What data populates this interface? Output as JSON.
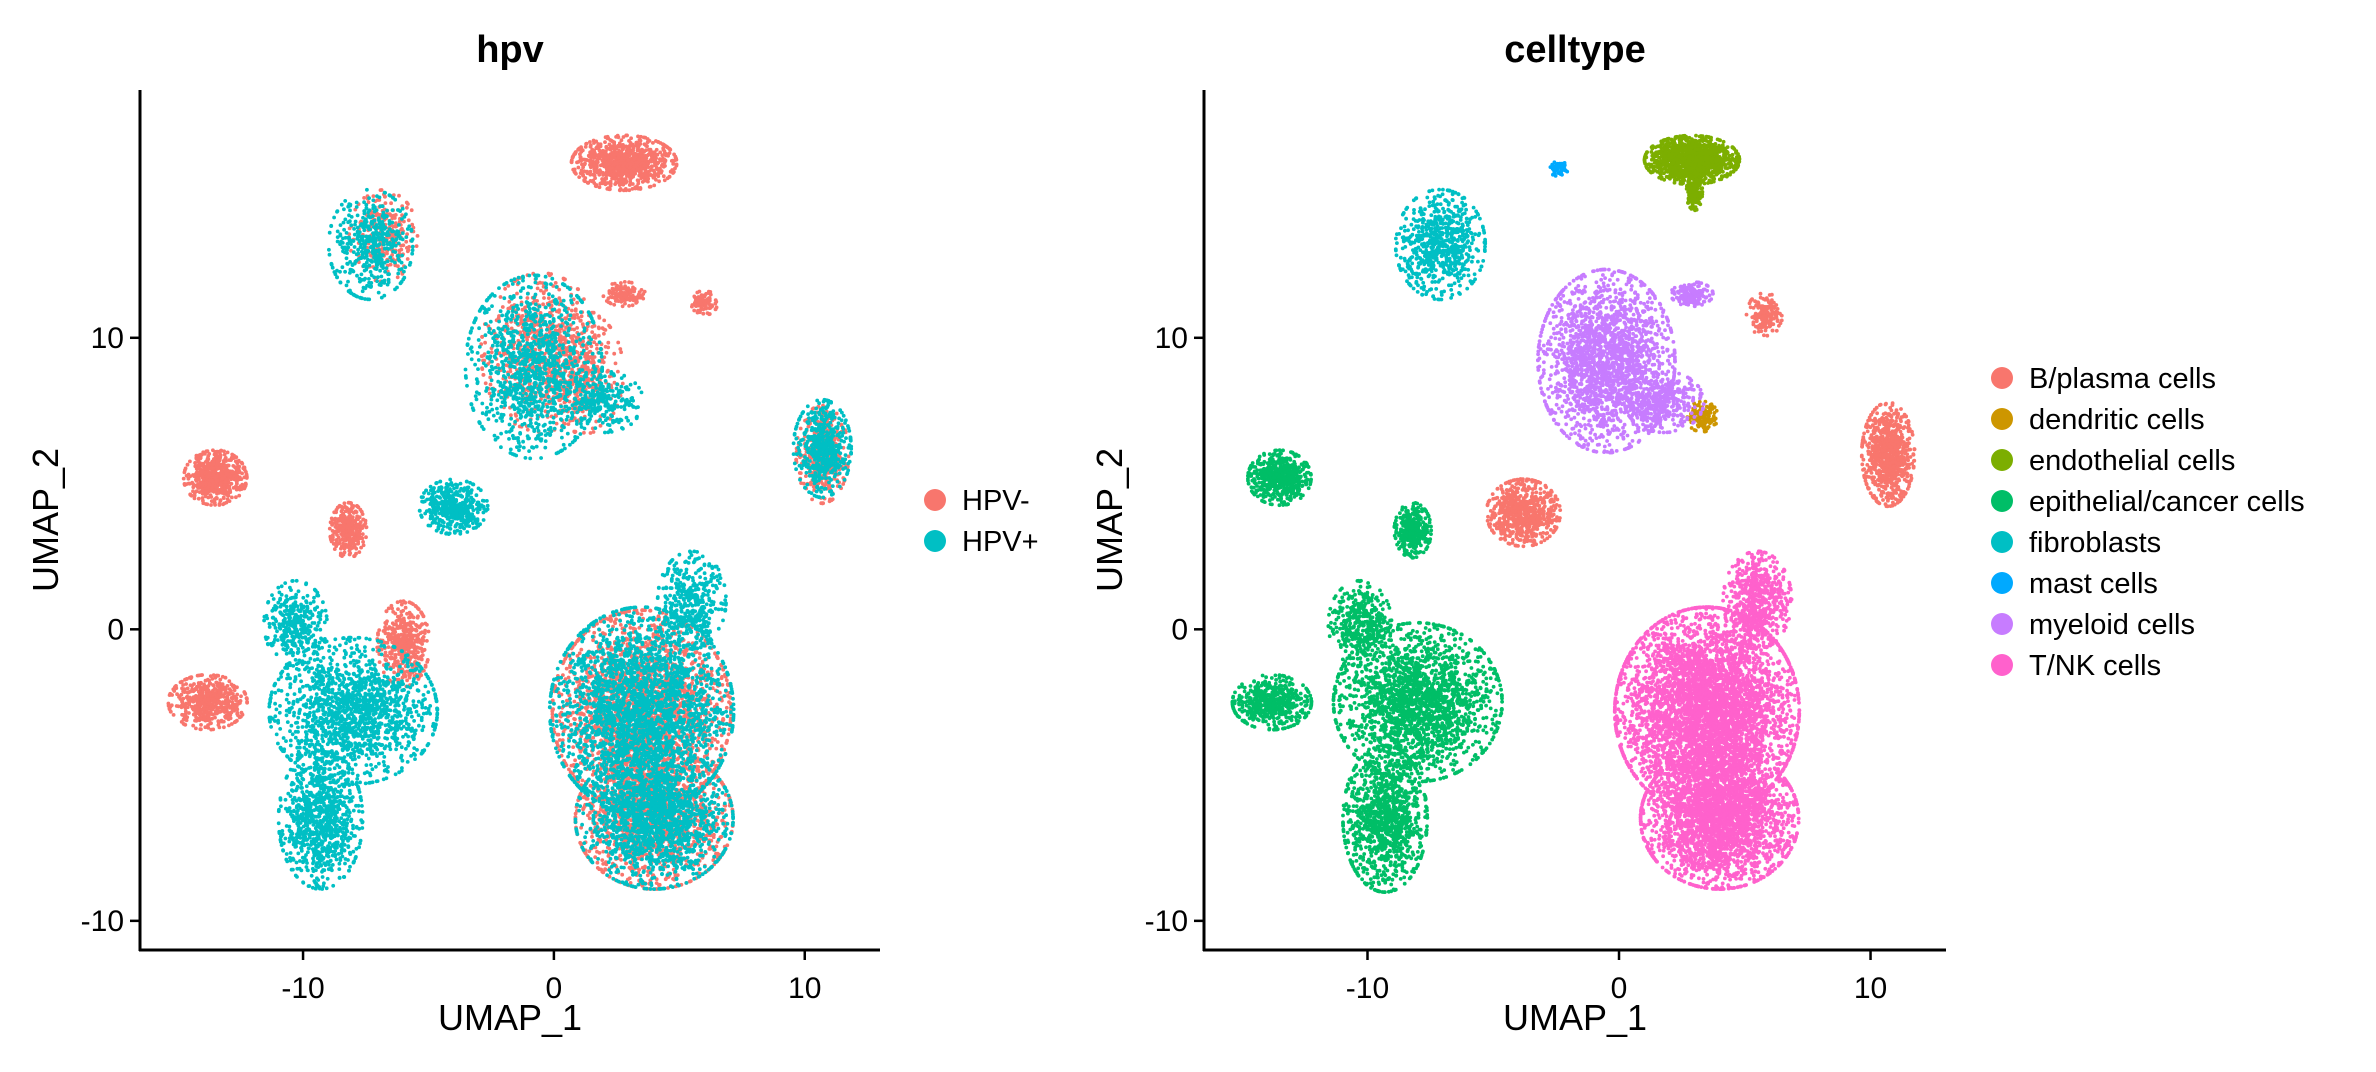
{
  "chart_data": [
    {
      "type": "scatter",
      "title": "hpv",
      "xlabel": "UMAP_1",
      "ylabel": "UMAP_2",
      "xlim": [
        -16.5,
        13
      ],
      "ylim": [
        -11,
        18.5
      ],
      "xticks": [
        -10,
        0,
        10
      ],
      "yticks": [
        -10,
        0,
        10
      ],
      "xtick_labels": [
        "-10",
        "0",
        "10"
      ],
      "ytick_labels": [
        "-10",
        "0",
        "10"
      ],
      "grid": false,
      "legend": "right",
      "series": [
        {
          "name": "HPV-",
          "color": "#F8766D",
          "regions": [
            {
              "x": 2.8,
              "y": 16.0,
              "rx": 2.0,
              "ry": 0.9,
              "n": 900
            },
            {
              "x": -0.5,
              "y": 9.5,
              "rx": 2.3,
              "ry": 2.6,
              "n": 700
            },
            {
              "x": 1.2,
              "y": 8.8,
              "rx": 1.5,
              "ry": 2.0,
              "n": 300
            },
            {
              "x": 2.8,
              "y": 11.5,
              "rx": 0.8,
              "ry": 0.4,
              "n": 120
            },
            {
              "x": 6.0,
              "y": 11.2,
              "rx": 0.5,
              "ry": 0.4,
              "n": 90
            },
            {
              "x": -13.5,
              "y": 5.2,
              "rx": 1.2,
              "ry": 0.9,
              "n": 600
            },
            {
              "x": -13.8,
              "y": -2.5,
              "rx": 1.5,
              "ry": 0.9,
              "n": 550
            },
            {
              "x": -8.2,
              "y": 3.4,
              "rx": 0.7,
              "ry": 0.9,
              "n": 350
            },
            {
              "x": -6.0,
              "y": -0.5,
              "rx": 1.0,
              "ry": 1.4,
              "n": 450
            },
            {
              "x": 10.7,
              "y": 6.0,
              "rx": 1.0,
              "ry": 1.6,
              "n": 400
            },
            {
              "x": -6.8,
              "y": 13.5,
              "rx": 1.3,
              "ry": 1.5,
              "n": 250
            },
            {
              "x": 3.5,
              "y": -2.8,
              "rx": 3.4,
              "ry": 3.3,
              "n": 2200
            },
            {
              "x": 4.0,
              "y": -6.5,
              "rx": 3.0,
              "ry": 2.3,
              "n": 1300
            }
          ]
        },
        {
          "name": "HPV+",
          "color": "#00BFC4",
          "regions": [
            {
              "x": -7.3,
              "y": 13.2,
              "rx": 1.6,
              "ry": 1.8,
              "n": 450
            },
            {
              "x": -0.8,
              "y": 9.0,
              "rx": 2.6,
              "ry": 3.0,
              "n": 1100
            },
            {
              "x": 2.0,
              "y": 7.8,
              "rx": 1.5,
              "ry": 1.0,
              "n": 250
            },
            {
              "x": 10.7,
              "y": 6.2,
              "rx": 1.1,
              "ry": 1.6,
              "n": 500
            },
            {
              "x": -4.0,
              "y": 4.2,
              "rx": 1.3,
              "ry": 0.9,
              "n": 450
            },
            {
              "x": -8.0,
              "y": -2.8,
              "rx": 3.2,
              "ry": 2.4,
              "n": 1500
            },
            {
              "x": -9.3,
              "y": -6.5,
              "rx": 1.6,
              "ry": 2.3,
              "n": 900
            },
            {
              "x": -10.3,
              "y": 0.2,
              "rx": 1.2,
              "ry": 1.4,
              "n": 350
            },
            {
              "x": 3.5,
              "y": -2.8,
              "rx": 3.5,
              "ry": 3.4,
              "n": 2600
            },
            {
              "x": 4.0,
              "y": -6.5,
              "rx": 3.0,
              "ry": 2.3,
              "n": 1500
            },
            {
              "x": 5.5,
              "y": 1.0,
              "rx": 1.3,
              "ry": 1.6,
              "n": 400
            }
          ]
        }
      ]
    },
    {
      "type": "scatter",
      "title": "celltype",
      "xlabel": "UMAP_1",
      "ylabel": "UMAP_2",
      "xlim": [
        -16.5,
        13
      ],
      "ylim": [
        -11,
        18.5
      ],
      "xticks": [
        -10,
        0,
        10
      ],
      "yticks": [
        -10,
        0,
        10
      ],
      "xtick_labels": [
        "-10",
        "0",
        "10"
      ],
      "ytick_labels": [
        "-10",
        "0",
        "10"
      ],
      "grid": false,
      "legend": "right",
      "series": [
        {
          "name": "B/plasma cells",
          "color": "#F8766D",
          "regions": [
            {
              "x": -3.8,
              "y": 4.0,
              "rx": 1.4,
              "ry": 1.1,
              "n": 700
            },
            {
              "x": 10.7,
              "y": 6.0,
              "rx": 1.0,
              "ry": 1.7,
              "n": 800
            },
            {
              "x": 5.8,
              "y": 10.8,
              "rx": 0.7,
              "ry": 0.7,
              "n": 150
            }
          ]
        },
        {
          "name": "dendritic cells",
          "color": "#CD9600",
          "regions": [
            {
              "x": 3.3,
              "y": 7.3,
              "rx": 0.6,
              "ry": 0.5,
              "n": 140
            }
          ]
        },
        {
          "name": "endothelial cells",
          "color": "#7CAE00",
          "regions": [
            {
              "x": 2.9,
              "y": 16.1,
              "rx": 1.8,
              "ry": 0.8,
              "n": 1200
            },
            {
              "x": 3.0,
              "y": 15.0,
              "rx": 0.3,
              "ry": 0.6,
              "n": 150
            }
          ]
        },
        {
          "name": "epithelial/cancer cells",
          "color": "#00BE67",
          "regions": [
            {
              "x": -13.5,
              "y": 5.2,
              "rx": 1.2,
              "ry": 0.9,
              "n": 600
            },
            {
              "x": -13.8,
              "y": -2.5,
              "rx": 1.5,
              "ry": 0.9,
              "n": 550
            },
            {
              "x": -8.2,
              "y": 3.4,
              "rx": 0.7,
              "ry": 0.9,
              "n": 350
            },
            {
              "x": -8.0,
              "y": -2.5,
              "rx": 3.2,
              "ry": 2.6,
              "n": 2000
            },
            {
              "x": -9.3,
              "y": -6.5,
              "rx": 1.6,
              "ry": 2.4,
              "n": 1100
            },
            {
              "x": -10.3,
              "y": 0.2,
              "rx": 1.2,
              "ry": 1.4,
              "n": 400
            }
          ]
        },
        {
          "name": "fibroblasts",
          "color": "#00BFC4",
          "regions": [
            {
              "x": -7.1,
              "y": 13.2,
              "rx": 1.7,
              "ry": 1.8,
              "n": 700
            }
          ]
        },
        {
          "name": "mast cells",
          "color": "#00A9FF",
          "regions": [
            {
              "x": -2.4,
              "y": 15.8,
              "rx": 0.35,
              "ry": 0.25,
              "n": 50
            }
          ]
        },
        {
          "name": "myeloid cells",
          "color": "#C77CFF",
          "regions": [
            {
              "x": -0.5,
              "y": 9.2,
              "rx": 2.6,
              "ry": 3.0,
              "n": 2000
            },
            {
              "x": 1.8,
              "y": 7.8,
              "rx": 1.5,
              "ry": 1.0,
              "n": 350
            },
            {
              "x": 2.9,
              "y": 11.5,
              "rx": 0.8,
              "ry": 0.4,
              "n": 150
            }
          ]
        },
        {
          "name": "T/NK cells",
          "color": "#FF61CC",
          "regions": [
            {
              "x": 3.5,
              "y": -2.8,
              "rx": 3.5,
              "ry": 3.4,
              "n": 4500
            },
            {
              "x": 4.0,
              "y": -6.5,
              "rx": 3.0,
              "ry": 2.3,
              "n": 2600
            },
            {
              "x": 5.5,
              "y": 1.0,
              "rx": 1.3,
              "ry": 1.6,
              "n": 600
            }
          ]
        }
      ]
    }
  ]
}
